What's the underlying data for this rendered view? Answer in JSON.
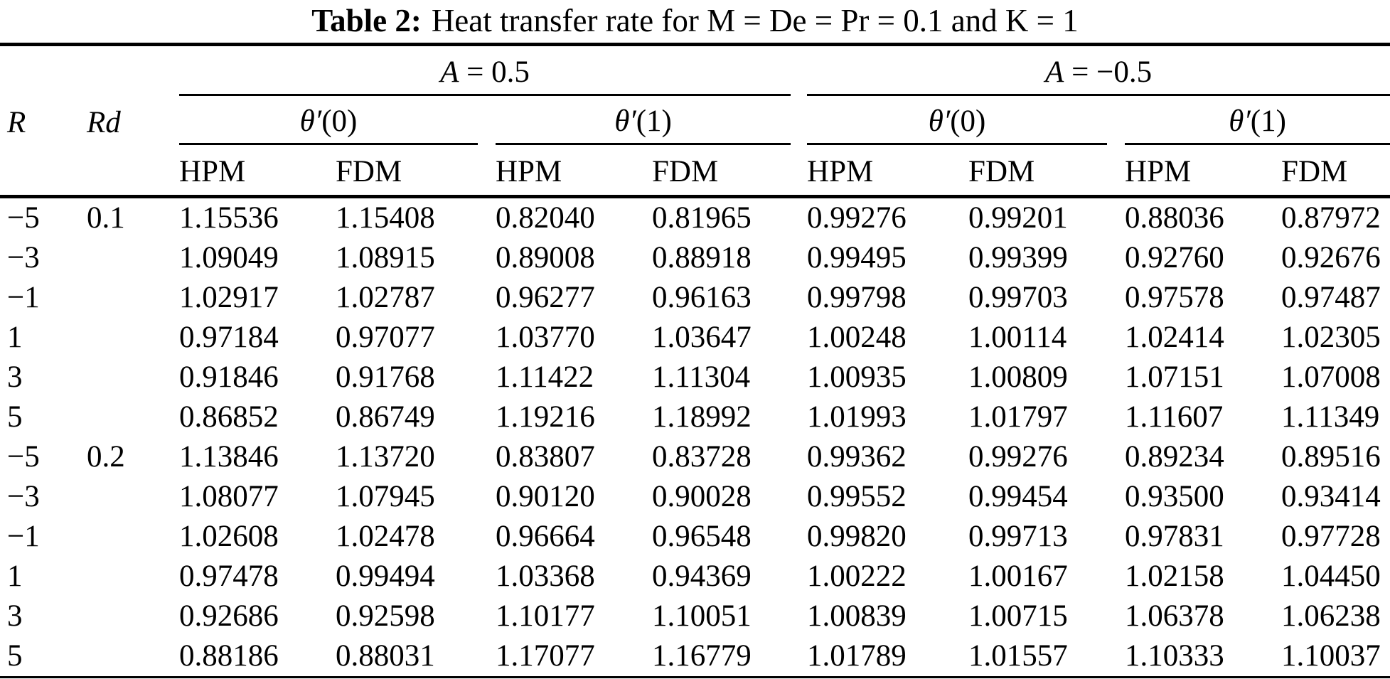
{
  "title": {
    "label": "Table 2:",
    "text": "Heat transfer rate for M = De = Pr = 0.1 and K = 1"
  },
  "header": {
    "r": "R",
    "rd": "Rd",
    "groups": [
      {
        "var": "A",
        "rest": " = 0.5"
      },
      {
        "var": "A",
        "rest": " = −0.5"
      }
    ],
    "theta0": {
      "var": "θ′",
      "rest": "(0)"
    },
    "theta1": {
      "var": "θ′",
      "rest": "(1)"
    },
    "methods": [
      "HPM",
      "FDM"
    ]
  },
  "colors": {
    "text": "#000000",
    "background": "#ffffff",
    "rule": "#000000"
  },
  "rows": [
    {
      "r": "−5",
      "rd": "0.1",
      "values": [
        "1.15536",
        "1.15408",
        "0.82040",
        "0.81965",
        "0.99276",
        "0.99201",
        "0.88036",
        "0.87972"
      ]
    },
    {
      "r": "−3",
      "rd": "",
      "values": [
        "1.09049",
        "1.08915",
        "0.89008",
        "0.88918",
        "0.99495",
        "0.99399",
        "0.92760",
        "0.92676"
      ]
    },
    {
      "r": "−1",
      "rd": "",
      "values": [
        "1.02917",
        "1.02787",
        "0.96277",
        "0.96163",
        "0.99798",
        "0.99703",
        "0.97578",
        "0.97487"
      ]
    },
    {
      "r": "1",
      "rd": "",
      "values": [
        "0.97184",
        "0.97077",
        "1.03770",
        "1.03647",
        "1.00248",
        "1.00114",
        "1.02414",
        "1.02305"
      ]
    },
    {
      "r": "3",
      "rd": "",
      "values": [
        "0.91846",
        "0.91768",
        "1.11422",
        "1.11304",
        "1.00935",
        "1.00809",
        "1.07151",
        "1.07008"
      ]
    },
    {
      "r": "5",
      "rd": "",
      "values": [
        "0.86852",
        "0.86749",
        "1.19216",
        "1.18992",
        "1.01993",
        "1.01797",
        "1.11607",
        "1.11349"
      ]
    },
    {
      "r": "−5",
      "rd": "0.2",
      "values": [
        "1.13846",
        "1.13720",
        "0.83807",
        "0.83728",
        "0.99362",
        "0.99276",
        "0.89234",
        "0.89516"
      ]
    },
    {
      "r": "−3",
      "rd": "",
      "values": [
        "1.08077",
        "1.07945",
        "0.90120",
        "0.90028",
        "0.99552",
        "0.99454",
        "0.93500",
        "0.93414"
      ]
    },
    {
      "r": "−1",
      "rd": "",
      "values": [
        "1.02608",
        "1.02478",
        "0.96664",
        "0.96548",
        "0.99820",
        "0.99713",
        "0.97831",
        "0.97728"
      ]
    },
    {
      "r": "1",
      "rd": "",
      "values": [
        "0.97478",
        "0.99494",
        "1.03368",
        "0.94369",
        "1.00222",
        "1.00167",
        "1.02158",
        "1.04450"
      ]
    },
    {
      "r": "3",
      "rd": "",
      "values": [
        "0.92686",
        "0.92598",
        "1.10177",
        "1.10051",
        "1.00839",
        "1.00715",
        "1.06378",
        "1.06238"
      ]
    },
    {
      "r": "5",
      "rd": "",
      "values": [
        "0.88186",
        "0.88031",
        "1.17077",
        "1.16779",
        "1.01789",
        "1.01557",
        "1.10333",
        "1.10037"
      ]
    }
  ]
}
